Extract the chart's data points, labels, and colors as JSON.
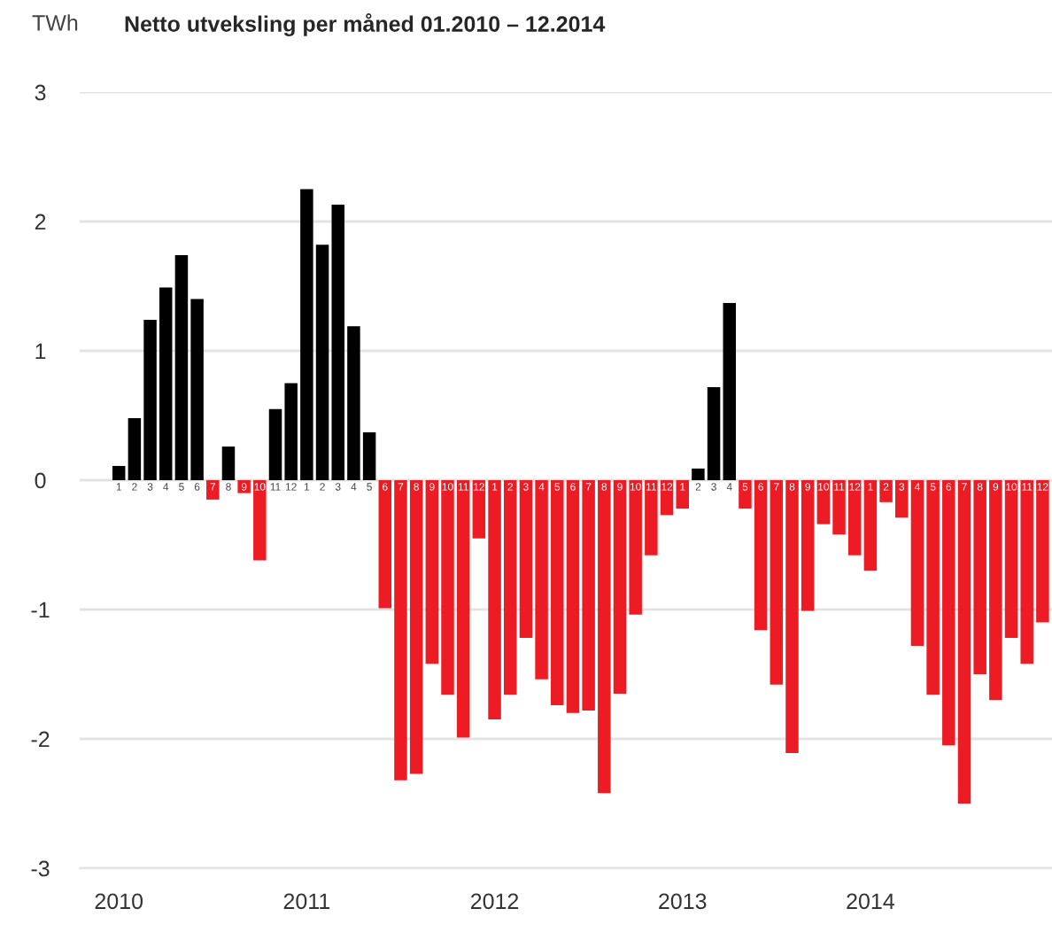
{
  "chart_data": {
    "type": "bar",
    "title": "Netto utveksling per måned 01.2010 – 12.2014",
    "ylabel": "TWh",
    "categories": [
      "1",
      "2",
      "3",
      "4",
      "5",
      "6",
      "7",
      "8",
      "9",
      "10",
      "11",
      "12",
      "1",
      "2",
      "3",
      "4",
      "5",
      "6",
      "7",
      "8",
      "9",
      "10",
      "11",
      "12",
      "1",
      "2",
      "3",
      "4",
      "5",
      "6",
      "7",
      "8",
      "9",
      "10",
      "11",
      "12",
      "1",
      "2",
      "3",
      "4",
      "5",
      "6",
      "7",
      "8",
      "9",
      "10",
      "11",
      "12",
      "1",
      "2",
      "3",
      "4",
      "5",
      "6",
      "7",
      "8",
      "9",
      "10",
      "11",
      "12"
    ],
    "values": [
      0.11,
      0.48,
      1.24,
      1.49,
      1.74,
      1.4,
      -0.15,
      0.26,
      -0.1,
      -0.62,
      0.55,
      0.75,
      2.25,
      1.82,
      2.13,
      1.19,
      0.37,
      -0.99,
      -2.32,
      -2.27,
      -1.42,
      -1.66,
      -1.99,
      -0.45,
      -1.85,
      -1.66,
      -1.22,
      -1.54,
      -1.74,
      -1.8,
      -1.78,
      -2.42,
      -1.65,
      -1.04,
      -0.58,
      -0.27,
      -0.22,
      0.09,
      0.72,
      1.37,
      -0.22,
      -1.16,
      -1.58,
      -2.11,
      -1.01,
      -0.34,
      -0.42,
      -0.58,
      -0.7,
      -0.17,
      -0.29,
      -1.28,
      -1.66,
      -2.05,
      -2.5,
      -1.5,
      -1.7,
      -1.22,
      -1.42,
      -1.1
    ],
    "colors": [
      "#000000",
      "#000000",
      "#000000",
      "#000000",
      "#000000",
      "#000000",
      "#ed1c24",
      "#000000",
      "#ed1c24",
      "#ed1c24",
      "#000000",
      "#000000",
      "#000000",
      "#000000",
      "#000000",
      "#000000",
      "#000000",
      "#ed1c24",
      "#ed1c24",
      "#ed1c24",
      "#ed1c24",
      "#ed1c24",
      "#ed1c24",
      "#ed1c24",
      "#ed1c24",
      "#ed1c24",
      "#ed1c24",
      "#ed1c24",
      "#ed1c24",
      "#ed1c24",
      "#ed1c24",
      "#ed1c24",
      "#ed1c24",
      "#ed1c24",
      "#ed1c24",
      "#ed1c24",
      "#ed1c24",
      "#000000",
      "#000000",
      "#000000",
      "#ed1c24",
      "#ed1c24",
      "#ed1c24",
      "#ed1c24",
      "#ed1c24",
      "#ed1c24",
      "#ed1c24",
      "#ed1c24",
      "#ed1c24",
      "#ed1c24",
      "#ed1c24",
      "#ed1c24",
      "#ed1c24",
      "#ed1c24",
      "#ed1c24",
      "#ed1c24",
      "#ed1c24",
      "#ed1c24",
      "#ed1c24",
      "#ed1c24"
    ],
    "ylim": [
      -3,
      3
    ],
    "yticks": [
      -3,
      -2,
      -1,
      0,
      1,
      2,
      3
    ],
    "grid": "y",
    "annotations": [
      "2010",
      "2011",
      "2012",
      "2013",
      "2014"
    ]
  }
}
